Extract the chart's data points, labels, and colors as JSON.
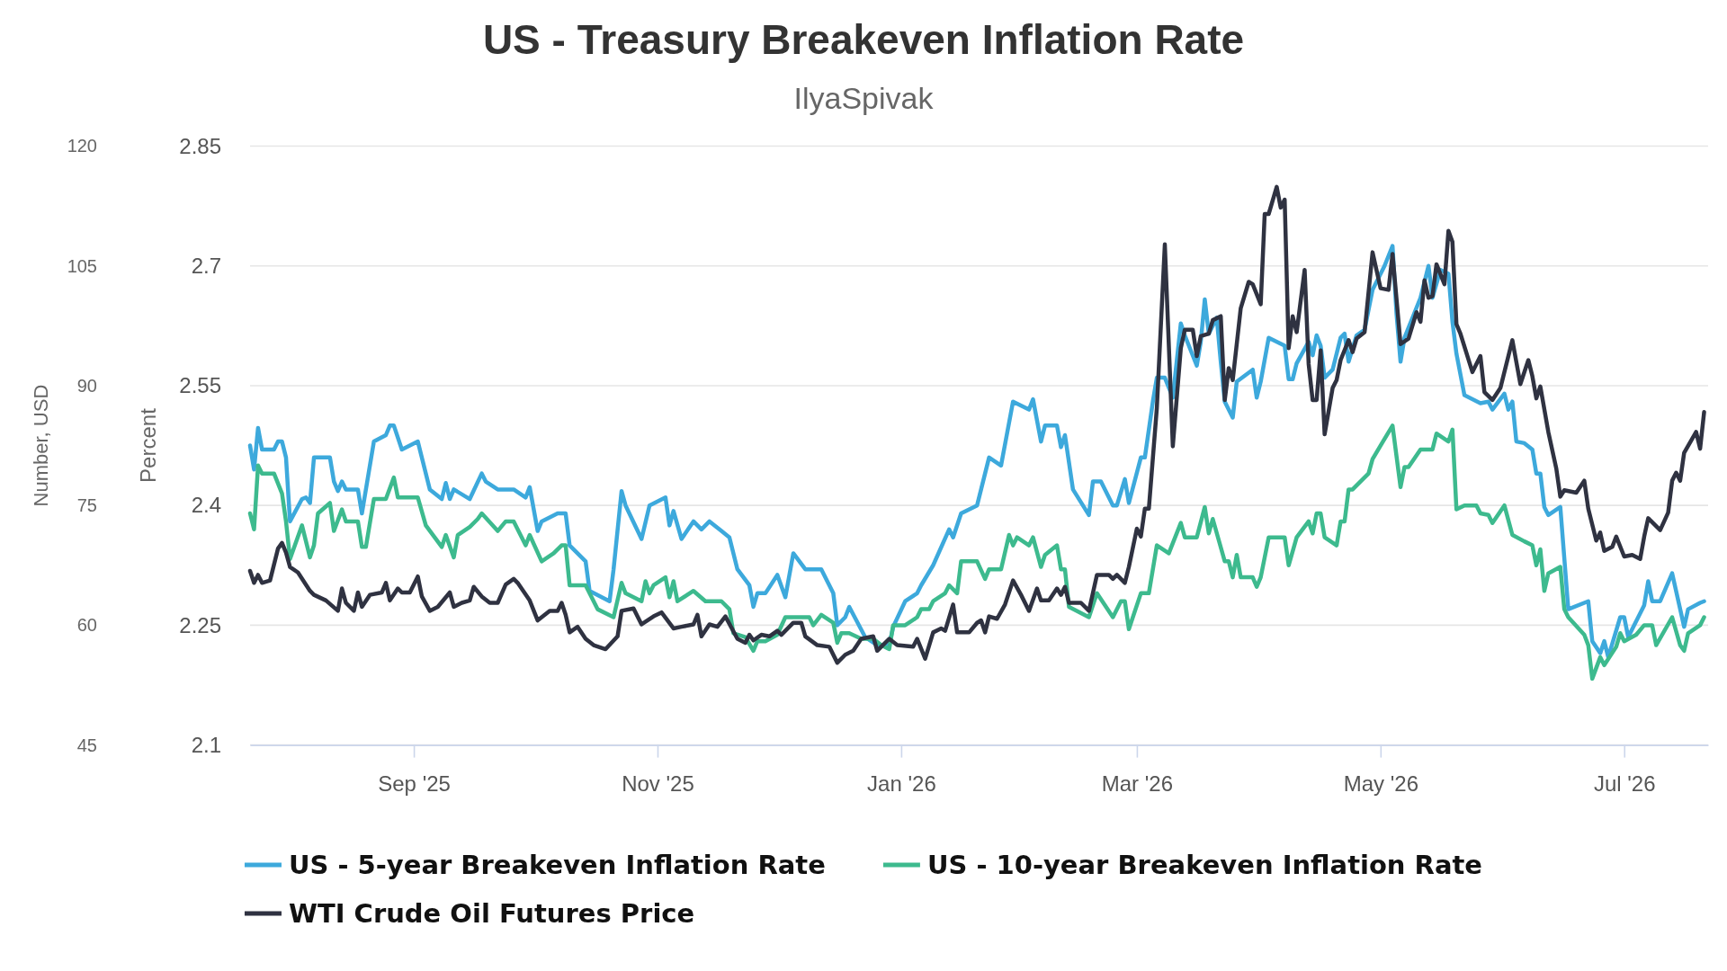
{
  "chart_data": {
    "type": "line",
    "title": "US - Treasury Breakeven Inflation Rate",
    "subtitle": "IlyaSpivak",
    "ylabel": "Percent",
    "y2label": "Number, USD",
    "xlim": [
      "2025-07-22",
      "2026-07-22"
    ],
    "xticks": [
      {
        "value": "2025-09-01",
        "label": "Sep '25"
      },
      {
        "value": "2025-11-01",
        "label": "Nov '25"
      },
      {
        "value": "2026-01-01",
        "label": "Jan '26"
      },
      {
        "value": "2026-03-01",
        "label": "Mar '26"
      },
      {
        "value": "2026-05-01",
        "label": "May '26"
      },
      {
        "value": "2026-07-01",
        "label": "Jul '26"
      }
    ],
    "ylim": [
      2.1,
      2.85
    ],
    "yticks": [
      2.1,
      2.25,
      2.4,
      2.55,
      2.7,
      2.85
    ],
    "y2lim": [
      45,
      120
    ],
    "y2ticks": [
      45,
      60,
      75,
      90,
      105,
      120
    ],
    "grid": "y",
    "legend": "bottom",
    "series": [
      {
        "name": "US - 5-year Breakeven Inflation Rate",
        "color": "#3da9dc",
        "x": [
          "2025-07-22",
          "2025-07-23",
          "2025-07-24",
          "2025-07-25",
          "2025-07-28",
          "2025-07-29",
          "2025-07-30",
          "2025-07-31",
          "2025-08-01",
          "2025-08-04",
          "2025-08-05",
          "2025-08-06",
          "2025-08-07",
          "2025-08-11",
          "2025-08-12",
          "2025-08-13",
          "2025-08-14",
          "2025-08-15",
          "2025-08-18",
          "2025-08-19",
          "2025-08-22",
          "2025-08-25",
          "2025-08-26",
          "2025-08-27",
          "2025-08-29",
          "2025-09-02",
          "2025-09-05",
          "2025-09-08",
          "2025-09-09",
          "2025-09-10",
          "2025-09-11",
          "2025-09-15",
          "2025-09-18",
          "2025-09-19",
          "2025-09-22",
          "2025-09-26",
          "2025-09-29",
          "2025-09-30",
          "2025-10-02",
          "2025-10-03",
          "2025-10-07",
          "2025-10-09",
          "2025-10-10",
          "2025-10-14",
          "2025-10-15",
          "2025-10-20",
          "2025-10-21",
          "2025-10-23",
          "2025-10-24",
          "2025-10-28",
          "2025-10-30",
          "2025-11-03",
          "2025-11-04",
          "2025-11-05",
          "2025-11-07",
          "2025-11-10",
          "2025-11-12",
          "2025-11-14",
          "2025-11-17",
          "2025-11-19",
          "2025-11-21",
          "2025-11-24",
          "2025-11-25",
          "2025-11-26",
          "2025-11-28",
          "2025-12-01",
          "2025-12-03",
          "2025-12-05",
          "2025-12-08",
          "2025-12-12",
          "2025-12-15",
          "2025-12-16",
          "2025-12-18",
          "2025-12-19",
          "2025-12-23",
          "2025-12-26",
          "2025-12-29",
          "2025-12-30",
          "2026-01-02",
          "2026-01-05",
          "2026-01-06",
          "2026-01-09",
          "2026-01-13",
          "2026-01-14",
          "2026-01-16",
          "2026-01-20",
          "2026-01-21",
          "2026-01-23",
          "2026-01-26",
          "2026-01-29",
          "2026-02-02",
          "2026-02-03",
          "2026-02-05",
          "2026-02-06",
          "2026-02-09",
          "2026-02-10",
          "2026-02-11",
          "2026-02-13",
          "2026-02-17",
          "2026-02-18",
          "2026-02-20",
          "2026-02-23",
          "2026-02-24",
          "2026-02-26",
          "2026-02-27",
          "2026-03-02",
          "2026-03-03",
          "2026-03-05",
          "2026-03-06",
          "2026-03-08",
          "2026-03-10",
          "2026-03-12",
          "2026-03-13",
          "2026-03-16",
          "2026-03-17",
          "2026-03-18",
          "2026-03-19",
          "2026-03-21",
          "2026-03-22",
          "2026-03-23",
          "2026-03-25",
          "2026-03-26",
          "2026-03-30",
          "2026-03-31",
          "2026-04-01",
          "2026-04-03",
          "2026-04-07",
          "2026-04-08",
          "2026-04-09",
          "2026-04-10",
          "2026-04-13",
          "2026-04-14",
          "2026-04-15",
          "2026-04-16",
          "2026-04-17",
          "2026-04-19",
          "2026-04-21",
          "2026-04-22",
          "2026-04-23",
          "2026-04-25",
          "2026-04-27",
          "2026-04-29",
          "2026-05-02",
          "2026-05-04",
          "2026-05-05",
          "2026-05-06",
          "2026-05-07",
          "2026-05-11",
          "2026-05-13",
          "2026-05-14",
          "2026-05-16",
          "2026-05-18",
          "2026-05-19",
          "2026-05-20",
          "2026-05-22",
          "2026-05-26",
          "2026-05-28",
          "2026-05-29",
          "2026-06-01",
          "2026-06-02",
          "2026-06-03",
          "2026-06-04",
          "2026-06-06",
          "2026-06-08",
          "2026-06-09",
          "2026-06-10",
          "2026-06-11",
          "2026-06-12",
          "2026-06-15",
          "2026-06-17",
          "2026-06-22",
          "2026-06-23",
          "2026-06-25",
          "2026-06-26",
          "2026-06-27",
          "2026-06-30",
          "2026-07-01",
          "2026-07-02",
          "2026-07-03",
          "2026-07-06",
          "2026-07-07",
          "2026-07-08",
          "2026-07-10",
          "2026-07-13",
          "2026-07-16",
          "2026-07-17",
          "2026-07-20",
          "2026-07-21"
        ],
        "values": [
          2.475,
          2.445,
          2.497,
          2.47,
          2.47,
          2.48,
          2.48,
          2.46,
          2.38,
          2.408,
          2.41,
          2.403,
          2.46,
          2.46,
          2.43,
          2.418,
          2.43,
          2.42,
          2.42,
          2.39,
          2.48,
          2.488,
          2.5,
          2.5,
          2.47,
          2.48,
          2.42,
          2.408,
          2.428,
          2.408,
          2.42,
          2.408,
          2.44,
          2.43,
          2.42,
          2.42,
          2.41,
          2.423,
          2.368,
          2.38,
          2.39,
          2.39,
          2.35,
          2.33,
          2.293,
          2.28,
          2.32,
          2.418,
          2.4,
          2.358,
          2.4,
          2.41,
          2.375,
          2.393,
          2.358,
          2.38,
          2.37,
          2.38,
          2.368,
          2.36,
          2.32,
          2.3,
          2.273,
          2.29,
          2.29,
          2.313,
          2.285,
          2.34,
          2.32,
          2.32,
          2.29,
          2.25,
          2.26,
          2.273,
          2.235,
          2.225,
          2.225,
          2.248,
          2.28,
          2.29,
          2.3,
          2.325,
          2.37,
          2.36,
          2.39,
          2.4,
          2.42,
          2.46,
          2.45,
          2.53,
          2.52,
          2.533,
          2.48,
          2.5,
          2.5,
          2.473,
          2.488,
          2.42,
          2.388,
          2.43,
          2.43,
          2.4,
          2.4,
          2.433,
          2.403,
          2.46,
          2.46,
          2.53,
          2.56,
          2.56,
          2.535,
          2.628,
          2.613,
          2.575,
          2.605,
          2.658,
          2.615,
          2.635,
          2.58,
          2.53,
          2.51,
          2.555,
          2.57,
          2.535,
          2.555,
          2.61,
          2.6,
          2.558,
          2.558,
          2.578,
          2.605,
          2.588,
          2.613,
          2.6,
          2.56,
          2.57,
          2.61,
          2.615,
          2.58,
          2.613,
          2.62,
          2.67,
          2.7,
          2.725,
          2.64,
          2.58,
          2.61,
          2.66,
          2.7,
          2.66,
          2.695,
          2.69,
          2.63,
          2.59,
          2.538,
          2.528,
          2.53,
          2.52,
          2.54,
          2.52,
          2.53,
          2.48,
          2.478,
          2.47,
          2.44,
          2.44,
          2.398,
          2.388,
          2.398,
          2.27,
          2.28,
          2.23,
          2.215,
          2.23,
          2.21,
          2.26,
          2.26,
          2.235,
          2.245,
          2.275,
          2.305,
          2.28,
          2.28,
          2.315,
          2.248,
          2.27,
          2.278,
          2.28
        ]
      },
      {
        "name": "US - 10-year Breakeven Inflation Rate",
        "color": "#3dba8e",
        "x": [
          "2025-07-22",
          "2025-07-23",
          "2025-07-24",
          "2025-07-25",
          "2025-07-28",
          "2025-07-30",
          "2025-07-31",
          "2025-08-01",
          "2025-08-04",
          "2025-08-06",
          "2025-08-07",
          "2025-08-08",
          "2025-08-11",
          "2025-08-12",
          "2025-08-14",
          "2025-08-15",
          "2025-08-18",
          "2025-08-19",
          "2025-08-20",
          "2025-08-22",
          "2025-08-25",
          "2025-08-27",
          "2025-08-28",
          "2025-09-02",
          "2025-09-04",
          "2025-09-08",
          "2025-09-09",
          "2025-09-11",
          "2025-09-12",
          "2025-09-15",
          "2025-09-17",
          "2025-09-18",
          "2025-09-22",
          "2025-09-24",
          "2025-09-26",
          "2025-09-29",
          "2025-09-30",
          "2025-10-03",
          "2025-10-06",
          "2025-10-08",
          "2025-10-09",
          "2025-10-10",
          "2025-10-14",
          "2025-10-17",
          "2025-10-21",
          "2025-10-23",
          "2025-10-24",
          "2025-10-28",
          "2025-10-29",
          "2025-10-30",
          "2025-10-31",
          "2025-11-03",
          "2025-11-04",
          "2025-11-05",
          "2025-11-06",
          "2025-11-10",
          "2025-11-13",
          "2025-11-17",
          "2025-11-19",
          "2025-11-20",
          "2025-11-23",
          "2025-11-25",
          "2025-11-26",
          "2025-11-28",
          "2025-12-01",
          "2025-12-03",
          "2025-12-09",
          "2025-12-10",
          "2025-12-12",
          "2025-12-15",
          "2025-12-16",
          "2025-12-17",
          "2025-12-19",
          "2025-12-22",
          "2025-12-25",
          "2025-12-27",
          "2025-12-29",
          "2025-12-30",
          "2026-01-02",
          "2026-01-05",
          "2026-01-06",
          "2026-01-08",
          "2026-01-09",
          "2026-01-12",
          "2026-01-13",
          "2026-01-15",
          "2026-01-16",
          "2026-01-20",
          "2026-01-22",
          "2026-01-23",
          "2026-01-26",
          "2026-01-28",
          "2026-01-29",
          "2026-01-30",
          "2026-02-02",
          "2026-02-03",
          "2026-02-05",
          "2026-02-06",
          "2026-02-09",
          "2026-02-10",
          "2026-02-11",
          "2026-02-12",
          "2026-02-17",
          "2026-02-19",
          "2026-02-23",
          "2026-02-25",
          "2026-02-26",
          "2026-02-27",
          "2026-03-02",
          "2026-03-04",
          "2026-03-06",
          "2026-03-09",
          "2026-03-12",
          "2026-03-13",
          "2026-03-16",
          "2026-03-18",
          "2026-03-19",
          "2026-03-20",
          "2026-03-23",
          "2026-03-24",
          "2026-03-25",
          "2026-03-26",
          "2026-03-27",
          "2026-03-30",
          "2026-03-31",
          "2026-04-01",
          "2026-04-03",
          "2026-04-07",
          "2026-04-08",
          "2026-04-10",
          "2026-04-13",
          "2026-04-14",
          "2026-04-15",
          "2026-04-16",
          "2026-04-17",
          "2026-04-20",
          "2026-04-21",
          "2026-04-22",
          "2026-04-23",
          "2026-04-24",
          "2026-04-28",
          "2026-04-29",
          "2026-05-01",
          "2026-05-04",
          "2026-05-06",
          "2026-05-07",
          "2026-05-08",
          "2026-05-11",
          "2026-05-14",
          "2026-05-15",
          "2026-05-18",
          "2026-05-19",
          "2026-05-20",
          "2026-05-22",
          "2026-05-25",
          "2026-05-26",
          "2026-05-28",
          "2026-05-29",
          "2026-06-01",
          "2026-06-03",
          "2026-06-06",
          "2026-06-08",
          "2026-06-09",
          "2026-06-10",
          "2026-06-11",
          "2026-06-12",
          "2026-06-15",
          "2026-06-16",
          "2026-06-17",
          "2026-06-21",
          "2026-06-22",
          "2026-06-23",
          "2026-06-25",
          "2026-06-26",
          "2026-06-29",
          "2026-06-30",
          "2026-07-01",
          "2026-07-04",
          "2026-07-06",
          "2026-07-08",
          "2026-07-09",
          "2026-07-13",
          "2026-07-15",
          "2026-07-16",
          "2026-07-17",
          "2026-07-20",
          "2026-07-21"
        ],
        "values": [
          2.39,
          2.37,
          2.45,
          2.44,
          2.44,
          2.415,
          2.38,
          2.333,
          2.375,
          2.335,
          2.35,
          2.39,
          2.403,
          2.368,
          2.395,
          2.38,
          2.38,
          2.348,
          2.348,
          2.408,
          2.408,
          2.435,
          2.41,
          2.41,
          2.375,
          2.348,
          2.363,
          2.335,
          2.363,
          2.373,
          2.383,
          2.39,
          2.368,
          2.38,
          2.38,
          2.35,
          2.363,
          2.33,
          2.34,
          2.35,
          2.35,
          2.3,
          2.3,
          2.27,
          2.26,
          2.303,
          2.29,
          2.28,
          2.305,
          2.29,
          2.3,
          2.31,
          2.285,
          2.305,
          2.28,
          2.293,
          2.28,
          2.28,
          2.27,
          2.24,
          2.235,
          2.218,
          2.23,
          2.23,
          2.238,
          2.26,
          2.26,
          2.25,
          2.263,
          2.253,
          2.228,
          2.24,
          2.24,
          2.233,
          2.233,
          2.225,
          2.22,
          2.25,
          2.25,
          2.26,
          2.27,
          2.27,
          2.28,
          2.29,
          2.3,
          2.29,
          2.33,
          2.33,
          2.308,
          2.32,
          2.32,
          2.363,
          2.35,
          2.36,
          2.35,
          2.36,
          2.323,
          2.338,
          2.35,
          2.32,
          2.32,
          2.273,
          2.26,
          2.29,
          2.26,
          2.28,
          2.28,
          2.245,
          2.29,
          2.29,
          2.35,
          2.34,
          2.378,
          2.36,
          2.36,
          2.398,
          2.365,
          2.383,
          2.33,
          2.33,
          2.31,
          2.338,
          2.31,
          2.31,
          2.298,
          2.31,
          2.36,
          2.36,
          2.325,
          2.36,
          2.38,
          2.365,
          2.39,
          2.39,
          2.36,
          2.35,
          2.38,
          2.38,
          2.42,
          2.42,
          2.44,
          2.458,
          2.475,
          2.5,
          2.423,
          2.448,
          2.448,
          2.47,
          2.47,
          2.49,
          2.48,
          2.495,
          2.395,
          2.4,
          2.4,
          2.39,
          2.388,
          2.378,
          2.4,
          2.363,
          2.355,
          2.35,
          2.325,
          2.345,
          2.293,
          2.315,
          2.323,
          2.27,
          2.26,
          2.238,
          2.225,
          2.183,
          2.21,
          2.2,
          2.223,
          2.24,
          2.23,
          2.238,
          2.25,
          2.25,
          2.225,
          2.26,
          2.225,
          2.218,
          2.24,
          2.25,
          2.26
        ]
      },
      {
        "name": "WTI Crude Oil Futures Price",
        "color": "#2f3241",
        "axis": "y2",
        "x": [
          "2025-07-22",
          "2025-07-23",
          "2025-07-24",
          "2025-07-25",
          "2025-07-27",
          "2025-07-29",
          "2025-07-30",
          "2025-07-31",
          "2025-08-01",
          "2025-08-03",
          "2025-08-06",
          "2025-08-07",
          "2025-08-10",
          "2025-08-13",
          "2025-08-14",
          "2025-08-15",
          "2025-08-17",
          "2025-08-18",
          "2025-08-19",
          "2025-08-21",
          "2025-08-24",
          "2025-08-25",
          "2025-08-26",
          "2025-08-28",
          "2025-08-29",
          "2025-08-31",
          "2025-09-02",
          "2025-09-03",
          "2025-09-05",
          "2025-09-07",
          "2025-09-10",
          "2025-09-11",
          "2025-09-13",
          "2025-09-15",
          "2025-09-16",
          "2025-09-18",
          "2025-09-20",
          "2025-09-22",
          "2025-09-24",
          "2025-09-26",
          "2025-09-27",
          "2025-09-30",
          "2025-10-02",
          "2025-10-05",
          "2025-10-07",
          "2025-10-08",
          "2025-10-09",
          "2025-10-10",
          "2025-10-12",
          "2025-10-14",
          "2025-10-16",
          "2025-10-19",
          "2025-10-22",
          "2025-10-23",
          "2025-10-26",
          "2025-10-28",
          "2025-10-31",
          "2025-11-02",
          "2025-11-05",
          "2025-11-07",
          "2025-11-10",
          "2025-11-11",
          "2025-11-12",
          "2025-11-14",
          "2025-11-16",
          "2025-11-18",
          "2025-11-21",
          "2025-11-23",
          "2025-11-24",
          "2025-11-25",
          "2025-11-27",
          "2025-11-29",
          "2025-12-01",
          "2025-12-02",
          "2025-12-05",
          "2025-12-07",
          "2025-12-08",
          "2025-12-11",
          "2025-12-14",
          "2025-12-16",
          "2025-12-18",
          "2025-12-20",
          "2025-12-22",
          "2025-12-25",
          "2025-12-26",
          "2025-12-27",
          "2025-12-29",
          "2025-12-31",
          "2026-01-04",
          "2026-01-05",
          "2026-01-07",
          "2026-01-09",
          "2026-01-11",
          "2026-01-12",
          "2026-01-14",
          "2026-01-15",
          "2026-01-18",
          "2026-01-20",
          "2026-01-21",
          "2026-01-22",
          "2026-01-23",
          "2026-01-25",
          "2026-01-27",
          "2026-01-29",
          "2026-01-31",
          "2026-02-02",
          "2026-02-04",
          "2026-02-05",
          "2026-02-07",
          "2026-02-09",
          "2026-02-10",
          "2026-02-11",
          "2026-02-12",
          "2026-02-15",
          "2026-02-17",
          "2026-02-19",
          "2026-02-22",
          "2026-02-23",
          "2026-02-24",
          "2026-02-26",
          "2026-02-27",
          "2026-03-01",
          "2026-03-02",
          "2026-03-03",
          "2026-03-04",
          "2026-03-06",
          "2026-03-08",
          "2026-03-10",
          "2026-03-12",
          "2026-03-13",
          "2026-03-15",
          "2026-03-16",
          "2026-03-17",
          "2026-03-19",
          "2026-03-20",
          "2026-03-22",
          "2026-03-23",
          "2026-03-24",
          "2026-03-25",
          "2026-03-27",
          "2026-03-29",
          "2026-03-30",
          "2026-04-01",
          "2026-04-02",
          "2026-04-03",
          "2026-04-05",
          "2026-04-06",
          "2026-04-07",
          "2026-04-08",
          "2026-04-09",
          "2026-04-10",
          "2026-04-12",
          "2026-04-13",
          "2026-04-14",
          "2026-04-15",
          "2026-04-16",
          "2026-04-17",
          "2026-04-19",
          "2026-04-20",
          "2026-04-21",
          "2026-04-23",
          "2026-04-24",
          "2026-04-25",
          "2026-04-27",
          "2026-04-29",
          "2026-05-01",
          "2026-05-03",
          "2026-05-04",
          "2026-05-06",
          "2026-05-08",
          "2026-05-10",
          "2026-05-11",
          "2026-05-12",
          "2026-05-13",
          "2026-05-14",
          "2026-05-15",
          "2026-05-17",
          "2026-05-18",
          "2026-05-19",
          "2026-05-20",
          "2026-05-21",
          "2026-05-24",
          "2026-05-26",
          "2026-05-27",
          "2026-05-29",
          "2026-05-31",
          "2026-06-03",
          "2026-06-05",
          "2026-06-07",
          "2026-06-08",
          "2026-06-09",
          "2026-06-10",
          "2026-06-12",
          "2026-06-14",
          "2026-06-15",
          "2026-06-16",
          "2026-06-19",
          "2026-06-21",
          "2026-06-22",
          "2026-06-24",
          "2026-06-25",
          "2026-06-26",
          "2026-06-28",
          "2026-06-29",
          "2026-07-01",
          "2026-07-03",
          "2026-07-05",
          "2026-07-06",
          "2026-07-07",
          "2026-07-10",
          "2026-07-12",
          "2026-07-13",
          "2026-07-14",
          "2026-07-15",
          "2026-07-16",
          "2026-07-19",
          "2026-07-20",
          "2026-07-21"
        ],
        "values": [
          66.8,
          65.3,
          66.3,
          65.3,
          65.6,
          69.6,
          70.3,
          69.1,
          67.3,
          66.6,
          64.3,
          63.8,
          63.1,
          61.8,
          64.6,
          62.8,
          61.8,
          64.1,
          62.3,
          63.8,
          64.1,
          65.3,
          63.1,
          64.6,
          64.1,
          64.1,
          66.1,
          63.6,
          61.8,
          62.3,
          64.1,
          62.3,
          62.8,
          63.1,
          64.8,
          63.6,
          62.8,
          62.8,
          65.1,
          65.8,
          65.3,
          63.1,
          60.6,
          61.8,
          61.8,
          62.8,
          61.3,
          59.1,
          59.8,
          58.3,
          57.5,
          57,
          58.6,
          61.8,
          62.1,
          60.1,
          61.1,
          61.6,
          59.6,
          59.8,
          60.1,
          61.3,
          58.6,
          60.1,
          59.8,
          61.1,
          58.3,
          57.8,
          58.8,
          58.1,
          58.8,
          58.6,
          59.3,
          58.8,
          60.3,
          60.3,
          58.6,
          57.5,
          57.3,
          55.3,
          56.3,
          56.8,
          58.3,
          58.6,
          56.8,
          57.3,
          58.3,
          57.5,
          57.3,
          58.3,
          55.8,
          59.1,
          59.6,
          59.3,
          62.6,
          59.1,
          59.1,
          60.3,
          60.6,
          59.1,
          61.1,
          60.8,
          62.6,
          65.6,
          63.8,
          61.8,
          64.6,
          63.1,
          63.1,
          64.6,
          63.8,
          64.8,
          62.8,
          62.8,
          61.8,
          66.3,
          66.3,
          65.8,
          66.3,
          65.3,
          67.3,
          72.1,
          71.1,
          74.6,
          74.6,
          87.2,
          107.7,
          82.4,
          94.7,
          97,
          97,
          93.7,
          96.2,
          96.5,
          98.2,
          98.7,
          88.2,
          92.2,
          90.7,
          99.7,
          103,
          102.7,
          100.2,
          111.5,
          111.5,
          114.9,
          112.3,
          113.3,
          94.7,
          98.7,
          96.7,
          104.5,
          92.7,
          88.2,
          88.2,
          94.4,
          83.9,
          89.7,
          90.7,
          93.2,
          95.7,
          94.2,
          95.9,
          96.7,
          106.7,
          102.2,
          102,
          106.5,
          95.2,
          95.9,
          99.2,
          98,
          103.2,
          101,
          101.2,
          105.2,
          102.7,
          109.4,
          108,
          97.7,
          96.5,
          91.7,
          93.7,
          89.2,
          88.2,
          89.7,
          95.7,
          90.2,
          93.2,
          91.2,
          88.4,
          89.9,
          84.2,
          79.6,
          76.1,
          76.9,
          76.6,
          78.1,
          74.6,
          70.6,
          71.6,
          69.3,
          69.8,
          71.1,
          68.6,
          68.8,
          68.3,
          71.1,
          73.4,
          71.9,
          74.1,
          78.1,
          79.1,
          78.1,
          81.6,
          84.2,
          82.1,
          86.7
        ]
      }
    ]
  }
}
